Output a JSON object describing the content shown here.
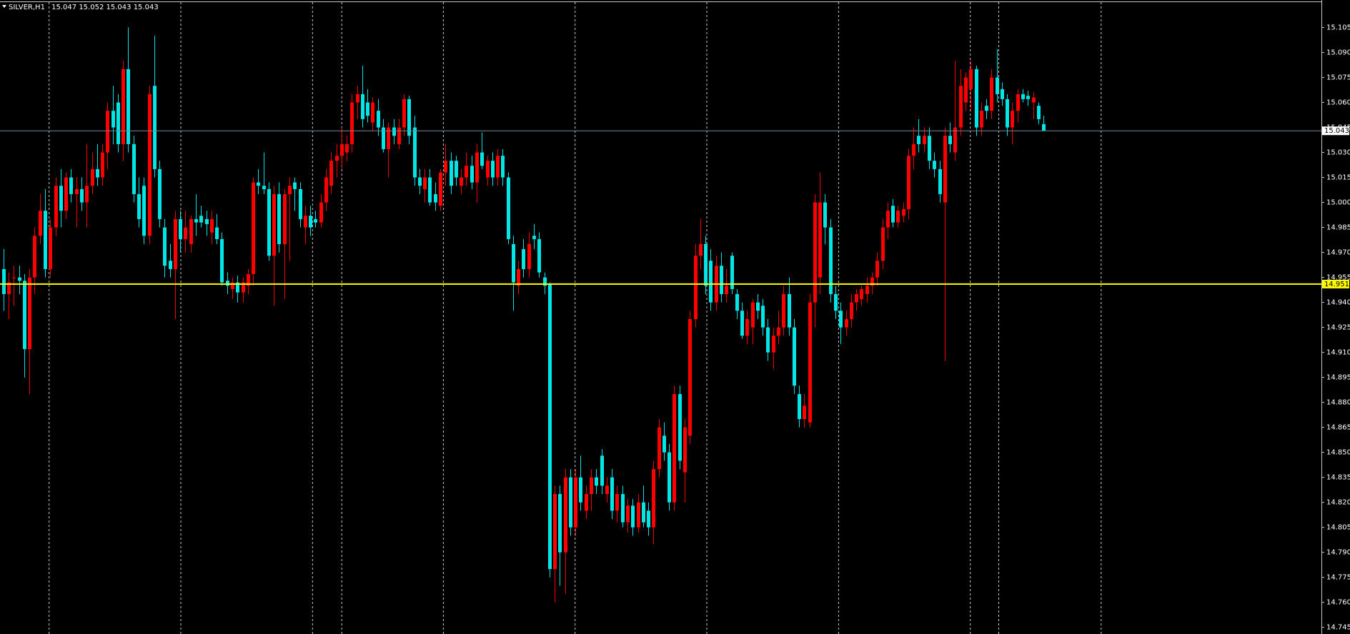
{
  "chart_data": {
    "type": "candlestick",
    "symbol": "SILVER,H1",
    "ohlc": [
      [
        14.96,
        14.972,
        14.935,
        14.945
      ],
      [
        14.945,
        14.958,
        14.93,
        14.952
      ],
      [
        14.955,
        14.962,
        14.938,
        14.955
      ],
      [
        14.955,
        14.962,
        14.945,
        14.953
      ],
      [
        14.953,
        14.957,
        14.895,
        14.912
      ],
      [
        14.912,
        14.96,
        14.885,
        14.955
      ],
      [
        14.955,
        14.985,
        14.945,
        14.98
      ],
      [
        14.98,
        15.005,
        14.975,
        14.995
      ],
      [
        14.995,
        15.008,
        14.955,
        14.96
      ],
      [
        14.96,
        14.99,
        14.955,
        14.985
      ],
      [
        14.985,
        15.015,
        14.98,
        15.01
      ],
      [
        15.01,
        15.02,
        14.985,
        14.995
      ],
      [
        14.995,
        15.018,
        14.99,
        15.015
      ],
      [
        15.015,
        15.02,
        15.0,
        15.005
      ],
      [
        15.005,
        15.015,
        14.985,
        15.008
      ],
      [
        15.008,
        15.015,
        14.995,
        15.0
      ],
      [
        15.0,
        15.035,
        14.985,
        15.01
      ],
      [
        15.01,
        15.03,
        15.005,
        15.02
      ],
      [
        15.02,
        15.035,
        15.01,
        15.015
      ],
      [
        15.015,
        15.035,
        15.01,
        15.03
      ],
      [
        15.03,
        15.06,
        15.02,
        15.055
      ],
      [
        15.055,
        15.07,
        15.035,
        15.045
      ],
      [
        15.06,
        15.065,
        15.03,
        15.035
      ],
      [
        15.035,
        15.085,
        15.025,
        15.08
      ],
      [
        15.08,
        15.105,
        15.03,
        15.035
      ],
      [
        15.035,
        15.04,
        15.0,
        15.005
      ],
      [
        15.005,
        15.015,
        14.985,
        14.99
      ],
      [
        15.01,
        15.015,
        14.975,
        14.98
      ],
      [
        14.98,
        15.07,
        14.975,
        15.065
      ],
      [
        15.07,
        15.1,
        15.015,
        15.02
      ],
      [
        15.02,
        15.025,
        14.985,
        14.99
      ],
      [
        14.985,
        14.99,
        14.955,
        14.962
      ],
      [
        14.965,
        14.975,
        14.955,
        14.96
      ],
      [
        14.96,
        14.995,
        14.93,
        14.99
      ],
      [
        14.99,
        14.995,
        14.97,
        14.978
      ],
      [
        14.978,
        14.995,
        14.97,
        14.985
      ],
      [
        14.975,
        14.992,
        14.97,
        14.99
      ],
      [
        14.99,
        15.005,
        14.98,
        14.988
      ],
      [
        14.992,
        14.998,
        14.985,
        14.988
      ],
      [
        14.99,
        14.995,
        14.98,
        14.987
      ],
      [
        14.982,
        14.995,
        14.975,
        14.99
      ],
      [
        14.985,
        14.993,
        14.975,
        14.978
      ],
      [
        14.978,
        14.982,
        14.95,
        14.952
      ],
      [
        14.953,
        14.958,
        14.945,
        14.95
      ],
      [
        14.948,
        14.955,
        14.942,
        14.952
      ],
      [
        14.952,
        14.956,
        14.94,
        14.946
      ],
      [
        14.946,
        14.955,
        14.94,
        14.952
      ],
      [
        14.95,
        14.96,
        14.945,
        14.957
      ],
      [
        14.957,
        15.015,
        14.95,
        15.012
      ],
      [
        15.012,
        15.02,
        15.005,
        15.01
      ],
      [
        15.01,
        15.03,
        15.005,
        15.008
      ],
      [
        15.008,
        15.012,
        14.965,
        14.968
      ],
      [
        14.968,
        15.01,
        14.938,
        15.005
      ],
      [
        15.005,
        15.012,
        14.97,
        14.975
      ],
      [
        14.975,
        15.008,
        14.942,
        15.005
      ],
      [
        15.005,
        15.015,
        14.965,
        15.01
      ],
      [
        15.012,
        15.015,
        14.995,
        15.008
      ],
      [
        15.008,
        15.012,
        14.985,
        14.99
      ],
      [
        14.985,
        14.998,
        14.975,
        14.992
      ],
      [
        14.992,
        14.998,
        14.98,
        14.985
      ],
      [
        14.99,
        14.995,
        14.985,
        14.988
      ],
      [
        14.988,
        15.005,
        14.985,
        15.0
      ],
      [
        15.0,
        15.02,
        14.995,
        15.015
      ],
      [
        15.01,
        15.03,
        15.005,
        15.025
      ],
      [
        15.025,
        15.035,
        15.015,
        15.028
      ],
      [
        15.028,
        15.045,
        15.02,
        15.035
      ],
      [
        15.03,
        15.04,
        15.025,
        15.035
      ],
      [
        15.035,
        15.065,
        15.03,
        15.06
      ],
      [
        15.06,
        15.07,
        15.05,
        15.065
      ],
      [
        15.065,
        15.082,
        15.045,
        15.05
      ],
      [
        15.06,
        15.068,
        15.048,
        15.052
      ],
      [
        15.048,
        15.063,
        15.043,
        15.06
      ],
      [
        15.055,
        15.062,
        15.04,
        15.045
      ],
      [
        15.045,
        15.05,
        15.03,
        15.032
      ],
      [
        15.032,
        15.048,
        15.015,
        15.045
      ],
      [
        15.045,
        15.05,
        15.035,
        15.04
      ],
      [
        15.035,
        15.05,
        15.032,
        15.045
      ],
      [
        15.045,
        15.065,
        15.04,
        15.062
      ],
      [
        15.062,
        15.064,
        15.035,
        15.04
      ],
      [
        15.045,
        15.052,
        15.01,
        15.015
      ],
      [
        15.015,
        15.02,
        15.005,
        15.01
      ],
      [
        15.008,
        15.02,
        15.0,
        15.015
      ],
      [
        15.015,
        15.02,
        14.998,
        15.0
      ],
      [
        15.005,
        15.012,
        14.995,
        15.0
      ],
      [
        14.998,
        15.02,
        14.995,
        15.018
      ],
      [
        15.018,
        15.035,
        15.01,
        15.025
      ],
      [
        15.025,
        15.03,
        15.005,
        15.01
      ],
      [
        15.025,
        15.028,
        15.01,
        15.015
      ],
      [
        15.01,
        15.02,
        15.005,
        15.015
      ],
      [
        15.015,
        15.03,
        15.01,
        15.022
      ],
      [
        15.022,
        15.028,
        15.008,
        15.012
      ],
      [
        15.012,
        15.035,
        15.0,
        15.03
      ],
      [
        15.03,
        15.042,
        15.02,
        15.022
      ],
      [
        15.015,
        15.028,
        15.01,
        15.025
      ],
      [
        15.025,
        15.03,
        15.01,
        15.015
      ],
      [
        15.015,
        15.032,
        15.01,
        15.028
      ],
      [
        15.028,
        15.032,
        15.01,
        15.015
      ],
      [
        15.015,
        15.018,
        14.975,
        14.978
      ],
      [
        14.975,
        14.98,
        14.935,
        14.952
      ],
      [
        14.95,
        14.965,
        14.945,
        14.96
      ],
      [
        14.972,
        14.978,
        14.955,
        14.96
      ],
      [
        14.96,
        14.982,
        14.955,
        14.975
      ],
      [
        14.98,
        14.987,
        14.972,
        14.978
      ],
      [
        14.978,
        14.982,
        14.955,
        14.958
      ],
      [
        14.955,
        14.958,
        14.945,
        14.95
      ],
      [
        14.951,
        14.952,
        14.775,
        14.78
      ],
      [
        14.78,
        14.83,
        14.76,
        14.825
      ],
      [
        14.825,
        14.83,
        14.77,
        14.79
      ],
      [
        14.79,
        14.84,
        14.765,
        14.835
      ],
      [
        14.835,
        14.84,
        14.8,
        14.805
      ],
      [
        14.805,
        14.84,
        14.8,
        14.835
      ],
      [
        14.835,
        14.848,
        14.815,
        14.82
      ],
      [
        14.815,
        14.83,
        14.81,
        14.825
      ],
      [
        14.825,
        14.84,
        14.815,
        14.835
      ],
      [
        14.835,
        14.84,
        14.825,
        14.83
      ],
      [
        14.848,
        14.852,
        14.825,
        14.83
      ],
      [
        14.825,
        14.835,
        14.82,
        14.83
      ],
      [
        14.835,
        14.84,
        14.81,
        14.815
      ],
      [
        14.815,
        14.83,
        14.808,
        14.825
      ],
      [
        14.825,
        14.83,
        14.805,
        14.808
      ],
      [
        14.808,
        14.822,
        14.802,
        14.818
      ],
      [
        14.818,
        14.822,
        14.8,
        14.805
      ],
      [
        14.805,
        14.825,
        14.802,
        14.82
      ],
      [
        14.82,
        14.83,
        14.805,
        14.808
      ],
      [
        14.815,
        14.82,
        14.8,
        14.805
      ],
      [
        14.805,
        14.845,
        14.795,
        14.84
      ],
      [
        14.84,
        14.87,
        14.835,
        14.865
      ],
      [
        14.86,
        14.868,
        14.845,
        14.85
      ],
      [
        14.85,
        14.855,
        14.815,
        14.82
      ],
      [
        14.82,
        14.89,
        14.815,
        14.885
      ],
      [
        14.885,
        14.89,
        14.84,
        14.845
      ],
      [
        14.838,
        14.87,
        14.82,
        14.865
      ],
      [
        14.86,
        14.935,
        14.855,
        14.93
      ],
      [
        14.93,
        14.975,
        14.925,
        14.968
      ],
      [
        14.968,
        14.99,
        14.96,
        14.975
      ],
      [
        14.975,
        14.98,
        14.945,
        14.95
      ],
      [
        14.965,
        14.972,
        14.935,
        14.94
      ],
      [
        14.94,
        14.968,
        14.935,
        14.962
      ],
      [
        14.962,
        14.97,
        14.94,
        14.945
      ],
      [
        14.945,
        14.96,
        14.94,
        14.95
      ],
      [
        14.968,
        14.97,
        14.945,
        14.948
      ],
      [
        14.945,
        14.948,
        14.93,
        14.935
      ],
      [
        14.935,
        14.94,
        14.918,
        14.92
      ],
      [
        14.92,
        14.935,
        14.915,
        14.93
      ],
      [
        14.925,
        14.942,
        14.915,
        14.94
      ],
      [
        14.94,
        14.945,
        14.93,
        14.935
      ],
      [
        14.938,
        14.942,
        14.92,
        14.925
      ],
      [
        14.925,
        14.93,
        14.905,
        14.91
      ],
      [
        14.91,
        14.925,
        14.9,
        14.92
      ],
      [
        14.92,
        14.935,
        14.915,
        14.925
      ],
      [
        14.925,
        14.95,
        14.92,
        14.945
      ],
      [
        14.945,
        14.955,
        14.92,
        14.925
      ],
      [
        14.925,
        14.93,
        14.885,
        14.89
      ],
      [
        14.885,
        14.89,
        14.865,
        14.87
      ],
      [
        14.87,
        14.885,
        14.865,
        14.878
      ],
      [
        14.868,
        14.945,
        14.865,
        14.94
      ],
      [
        14.94,
        15.005,
        14.925,
        15.0
      ],
      [
        14.955,
        15.018,
        14.945,
        15.0
      ],
      [
        15.0,
        15.005,
        14.975,
        14.985
      ],
      [
        14.985,
        14.99,
        14.94,
        14.945
      ],
      [
        14.945,
        14.95,
        14.93,
        14.935
      ],
      [
        14.935,
        14.94,
        14.915,
        14.925
      ],
      [
        14.925,
        14.935,
        14.92,
        14.93
      ],
      [
        14.93,
        14.945,
        14.925,
        14.94
      ],
      [
        14.94,
        14.948,
        14.935,
        14.945
      ],
      [
        14.942,
        14.95,
        14.938,
        14.948
      ],
      [
        14.945,
        14.955,
        14.94,
        14.95
      ],
      [
        14.95,
        14.958,
        14.945,
        14.955
      ],
      [
        14.955,
        14.97,
        14.95,
        14.965
      ],
      [
        14.965,
        14.99,
        14.96,
        14.985
      ],
      [
        14.985,
        15.0,
        14.978,
        14.995
      ],
      [
        14.998,
        15.002,
        14.985,
        14.988
      ],
      [
        14.988,
        14.998,
        14.985,
        14.995
      ],
      [
        14.992,
        15.0,
        14.988,
        14.996
      ],
      [
        14.996,
        15.032,
        14.99,
        15.028
      ],
      [
        15.028,
        15.045,
        15.02,
        15.035
      ],
      [
        15.04,
        15.05,
        15.03,
        15.035
      ],
      [
        15.035,
        15.045,
        15.03,
        15.04
      ],
      [
        15.04,
        15.045,
        15.02,
        15.025
      ],
      [
        15.025,
        15.03,
        15.015,
        15.02
      ],
      [
        15.02,
        15.025,
        15.0,
        15.005
      ],
      [
        15.0,
        15.045,
        14.905,
        15.04
      ],
      [
        15.04,
        15.048,
        15.03,
        15.035
      ],
      [
        15.03,
        15.085,
        15.025,
        15.045
      ],
      [
        15.045,
        15.08,
        15.04,
        15.07
      ],
      [
        15.06,
        15.078,
        15.055,
        15.075
      ],
      [
        15.068,
        15.085,
        15.055,
        15.08
      ],
      [
        15.08,
        15.082,
        15.04,
        15.045
      ],
      [
        15.045,
        15.06,
        15.04,
        15.055
      ],
      [
        15.058,
        15.062,
        15.05,
        15.055
      ],
      [
        15.055,
        15.08,
        15.05,
        15.075
      ],
      [
        15.075,
        15.092,
        15.06,
        15.065
      ],
      [
        15.068,
        15.072,
        15.058,
        15.062
      ],
      [
        15.062,
        15.065,
        15.04,
        15.045
      ],
      [
        15.045,
        15.06,
        15.035,
        15.055
      ],
      [
        15.055,
        15.068,
        15.048,
        15.065
      ],
      [
        15.065,
        15.068,
        15.06,
        15.062
      ],
      [
        15.064,
        15.067,
        15.058,
        15.062
      ],
      [
        15.06,
        15.066,
        15.05,
        15.063
      ],
      [
        15.058,
        15.06,
        15.047,
        15.05
      ],
      [
        15.047,
        15.052,
        15.043,
        15.043
      ]
    ],
    "up_color": "#ff0000",
    "down_color": "#00e6e6",
    "bid_line_color": "#778899",
    "levels": [
      {
        "value": 14.951,
        "color": "#ffff00"
      }
    ],
    "ylim": [
      14.741,
      15.1215
    ],
    "yticks": [
      15.105,
      {
        "value": 15.09,
        "label": "15.090"
      },
      15.075,
      {
        "value": 15.06,
        "label": "15.060"
      },
      15.045,
      {
        "value": 15.03,
        "label": "15.030"
      },
      15.015,
      {
        "value": 15,
        "label": "15.000"
      },
      14.985,
      {
        "value": 14.97,
        "label": "14.970"
      },
      14.955,
      {
        "value": 14.94,
        "label": "14.940"
      },
      14.925,
      {
        "value": 14.91,
        "label": "14.910"
      },
      14.895,
      {
        "value": 14.88,
        "label": "14.880"
      },
      14.865,
      {
        "value": 14.85,
        "label": "14.850"
      },
      14.835,
      {
        "value": 14.82,
        "label": "14.820"
      },
      14.805,
      {
        "value": 14.79,
        "label": "14.790"
      },
      14.775,
      {
        "value": 14.76,
        "label": "14.760"
      },
      14.745
    ]
  }
}
